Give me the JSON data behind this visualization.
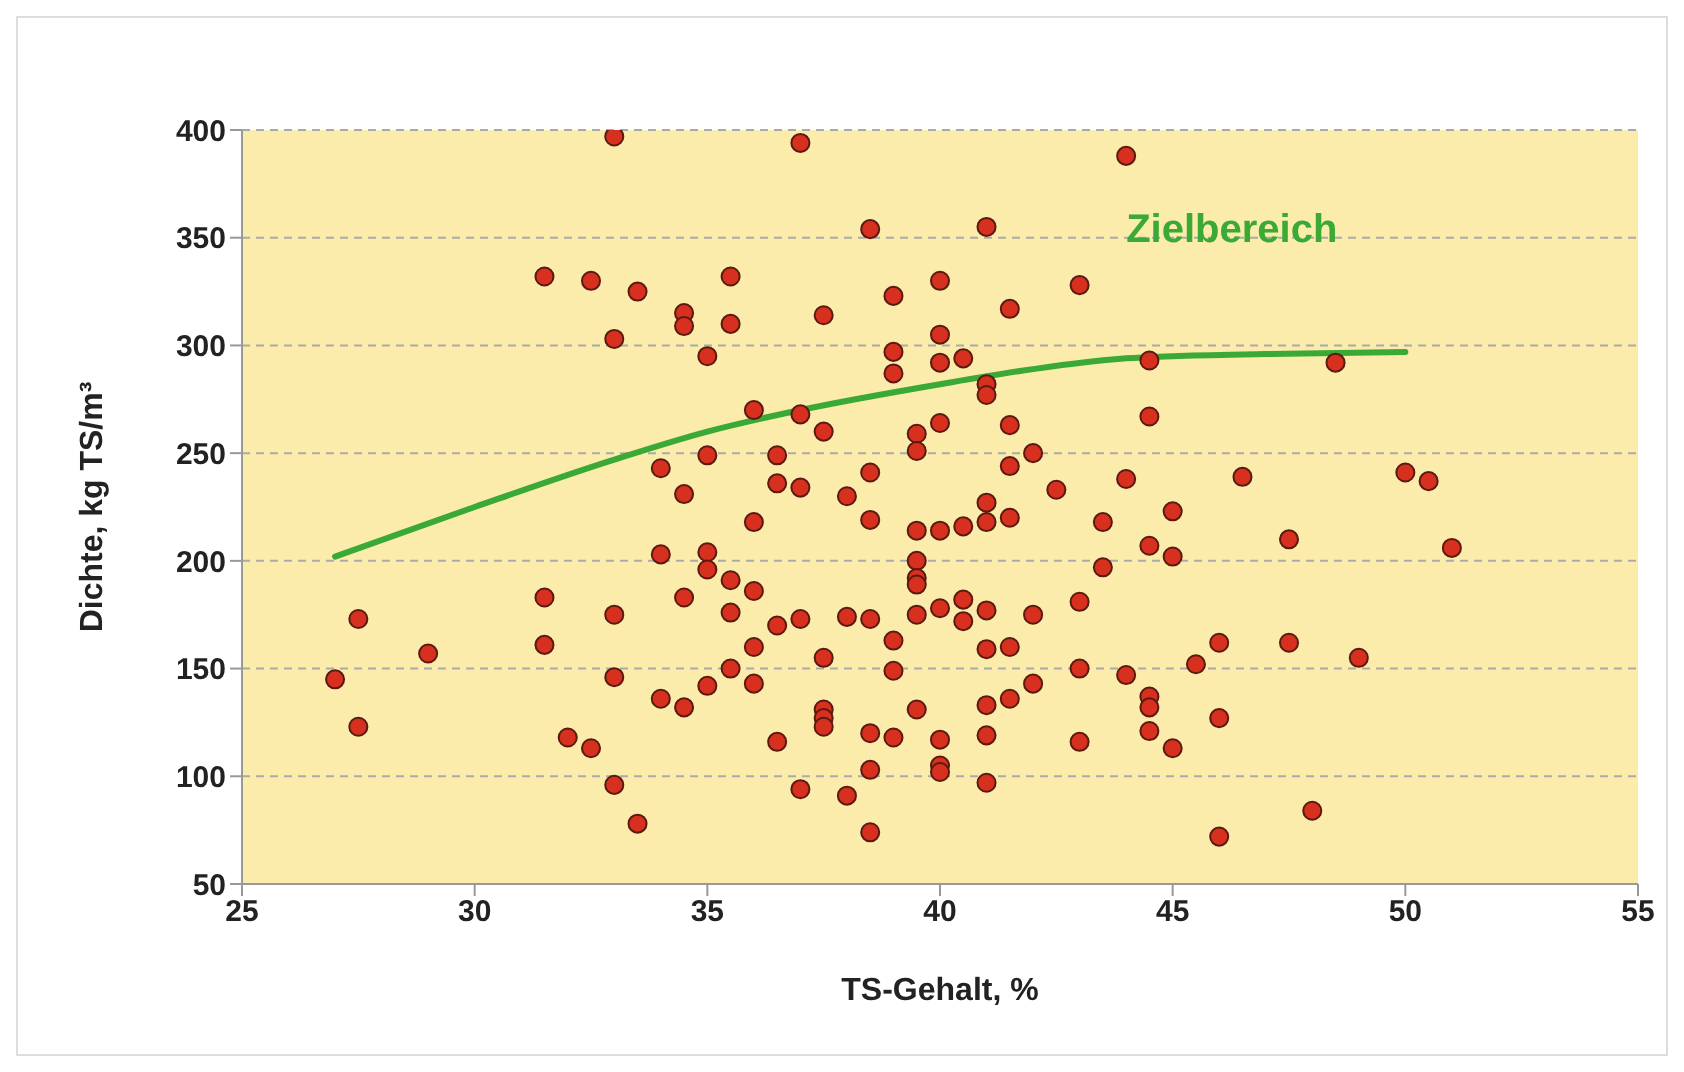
{
  "chart_data": {
    "type": "scatter",
    "xlabel": "TS-Gehalt, %",
    "ylabel": "Dichte, kg TS/m³",
    "xlim": [
      25,
      55
    ],
    "xticks": [
      25,
      30,
      35,
      40,
      45,
      50,
      55
    ],
    "ylim": [
      50,
      400
    ],
    "yticks": [
      50,
      100,
      150,
      200,
      250,
      300,
      350,
      400
    ],
    "grid": "y",
    "legend": false,
    "marker": "circle",
    "series": [
      {
        "color": "#d7301f",
        "x": [
          27,
          27.5,
          27.5,
          29,
          31.5,
          31.5,
          31.5,
          32,
          32.5,
          32.5,
          33,
          33,
          33,
          33,
          33,
          33.5,
          33.5,
          34,
          34,
          34,
          34.5,
          34.5,
          34.5,
          34.5,
          34.5,
          35,
          35,
          35,
          35,
          35,
          35.5,
          35.5,
          35.5,
          35.5,
          35.5,
          36,
          36,
          36,
          36,
          36,
          36.5,
          36.5,
          36.5,
          36.5,
          37,
          37,
          37,
          37,
          37,
          37.5,
          37.5,
          37.5,
          37.5,
          37.5,
          37.5,
          38,
          38,
          38,
          38.5,
          38.5,
          38.5,
          38.5,
          38.5,
          38.5,
          38.5,
          39,
          39,
          39,
          39,
          39,
          39,
          39.5,
          39.5,
          39.5,
          39.5,
          39.5,
          39.5,
          39.5,
          39.5,
          40,
          40,
          40,
          40,
          40,
          40,
          40,
          40,
          40,
          40.5,
          40.5,
          40.5,
          40.5,
          41,
          41,
          41,
          41,
          41,
          41,
          41,
          41,
          41,
          41,
          41.5,
          41.5,
          41.5,
          41.5,
          41.5,
          41.5,
          42,
          42,
          42,
          42.5,
          43,
          43,
          43,
          43,
          43.5,
          43.5,
          44,
          44,
          44,
          44.5,
          44.5,
          44.5,
          44.5,
          44.5,
          44.5,
          45,
          45,
          45,
          45.5,
          46,
          46,
          46,
          46.5,
          47.5,
          47.5,
          48,
          48.5,
          49,
          50,
          50.5,
          51
        ],
        "values": [
          145,
          123,
          173,
          157,
          332,
          183,
          161,
          118,
          330,
          113,
          397,
          303,
          175,
          146,
          96,
          325,
          78,
          243,
          203,
          136,
          315,
          309,
          231,
          183,
          132,
          295,
          249,
          204,
          196,
          142,
          332,
          310,
          191,
          176,
          150,
          270,
          218,
          186,
          160,
          143,
          249,
          236,
          170,
          116,
          394,
          268,
          234,
          173,
          94,
          314,
          260,
          155,
          131,
          127,
          123,
          230,
          174,
          91,
          354,
          241,
          219,
          173,
          120,
          103,
          74,
          323,
          297,
          287,
          163,
          149,
          118,
          259,
          251,
          214,
          200,
          192,
          189,
          175,
          131,
          330,
          305,
          292,
          264,
          214,
          178,
          117,
          105,
          102,
          294,
          216,
          182,
          172,
          355,
          282,
          277,
          227,
          218,
          177,
          159,
          133,
          119,
          97,
          317,
          263,
          244,
          220,
          160,
          136,
          250,
          175,
          143,
          233,
          328,
          181,
          150,
          116,
          218,
          197,
          388,
          238,
          147,
          293,
          267,
          207,
          137,
          132,
          121,
          223,
          202,
          113,
          152,
          162,
          127,
          72,
          239,
          210,
          162,
          84,
          292,
          155,
          241,
          237,
          206
        ]
      },
      {
        "type": "line",
        "name": "Zielbereich",
        "color": "#3aa935",
        "marker": "none",
        "line_style": "solid",
        "x": [
          27,
          30,
          33,
          35,
          37,
          40,
          42,
          44,
          45,
          47,
          50
        ],
        "values": [
          202,
          225,
          247,
          260,
          270,
          282,
          289,
          294,
          295,
          296,
          297
        ]
      }
    ]
  }
}
